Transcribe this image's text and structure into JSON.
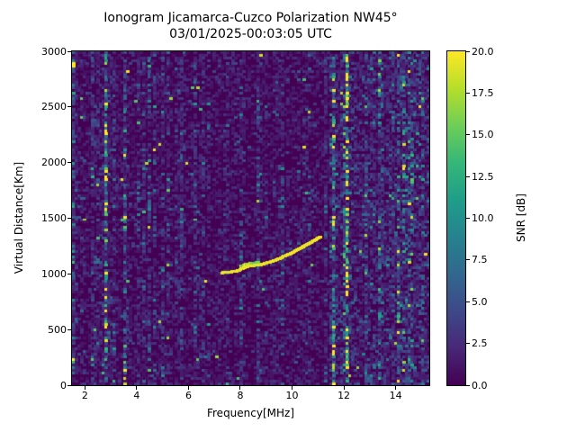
{
  "chart_data": {
    "type": "heatmap",
    "title": "Ionogram Jicamarca-Cuzco Polarization NW45°",
    "subtitle": "03/01/2025-00:03:05 UTC",
    "xlabel": "Frequency[MHz]",
    "ylabel": "Virtual Distance[Km]",
    "xlim": [
      1.5,
      15.3
    ],
    "ylim": [
      0,
      3000
    ],
    "xticks": [
      2,
      4,
      6,
      8,
      10,
      12,
      14
    ],
    "yticks": [
      0,
      500,
      1000,
      1500,
      2000,
      2500,
      3000
    ],
    "grid": false,
    "colorbar": {
      "label": "SNR [dB]",
      "min": 0,
      "max": 20,
      "ticks": [
        0.0,
        2.5,
        5.0,
        7.5,
        10.0,
        12.5,
        15.0,
        17.5,
        20.0
      ],
      "colormap": "viridis",
      "colormap_stops": [
        "#440154",
        "#482878",
        "#3e4989",
        "#31688e",
        "#26828e",
        "#1f9e89",
        "#35b779",
        "#6ece58",
        "#b5de2b",
        "#fde725"
      ]
    },
    "background_noise": {
      "description": "Speckle noise mostly 0-5 dB over dark 0 dB background; sparse bright vertical streaks; noticeably denser teal/green/yellow speckling above ~11.5 MHz",
      "seed": 20250301,
      "mean_db": 1.4,
      "active_column_fraction": 0.07,
      "high_freq_boost_start_mhz": 11.5
    },
    "echo_trace": {
      "description": "F-region ionogram echo trace, bright yellow (~18-20 dB), flat near 1000 km then rising, with a thicker blob near 8.2-8.6 MHz",
      "snr_db": 19,
      "points": [
        [
          7.3,
          1010
        ],
        [
          7.5,
          1015
        ],
        [
          7.7,
          1020
        ],
        [
          7.9,
          1030
        ],
        [
          8.1,
          1050
        ],
        [
          8.3,
          1070
        ],
        [
          8.5,
          1075
        ],
        [
          8.7,
          1080
        ],
        [
          8.9,
          1090
        ],
        [
          9.1,
          1105
        ],
        [
          9.3,
          1120
        ],
        [
          9.5,
          1140
        ],
        [
          9.7,
          1160
        ],
        [
          9.9,
          1180
        ],
        [
          10.1,
          1205
        ],
        [
          10.3,
          1230
        ],
        [
          10.5,
          1255
        ],
        [
          10.7,
          1280
        ],
        [
          10.9,
          1310
        ],
        [
          11.1,
          1335
        ]
      ]
    }
  }
}
